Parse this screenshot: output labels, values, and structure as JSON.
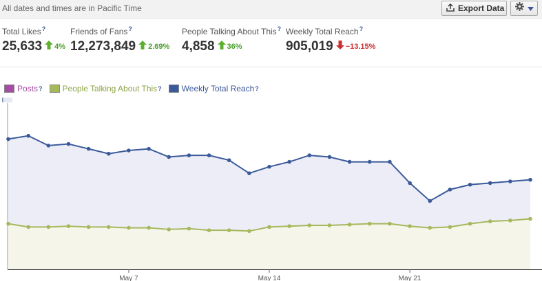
{
  "header": {
    "timezone_note": "All dates and times are in Pacific Time",
    "export_label": "Export Data",
    "gear_icon": "gear-icon"
  },
  "stats": [
    {
      "label": "Total Likes",
      "help": "?",
      "value": "25,633",
      "direction": "up",
      "change": "4%"
    },
    {
      "label": "Friends of Fans",
      "help": "?",
      "value": "12,273,849",
      "direction": "up",
      "change": "2.69%"
    },
    {
      "label": "People Talking About This",
      "help": "?",
      "value": "4,858",
      "direction": "up",
      "change": "36%"
    },
    {
      "label": "Weekly Total Reach",
      "help": "?",
      "value": "905,019",
      "direction": "down",
      "change": "−13.15%"
    }
  ],
  "colors": {
    "posts": "#a54ca5",
    "talking": "#a6b85c",
    "reach": "#3b5a9a",
    "reach_fill": "#ecedf7",
    "talking_fill": "#f5f5ea",
    "up": "#4a9d2a",
    "down": "#cc2f2f"
  },
  "legend": [
    {
      "label": "Posts",
      "help": "?",
      "color": "#a54ca5"
    },
    {
      "label": "People Talking About This",
      "help": "?",
      "color": "#a6b85c"
    },
    {
      "label": "Weekly Total Reach",
      "help": "?",
      "color": "#3b5a9a"
    }
  ],
  "chart_data": {
    "type": "area",
    "categories": [
      "",
      "",
      "",
      "",
      "",
      "",
      "May 7",
      "",
      "",
      "",
      "",
      "",
      "",
      "May 14",
      "",
      "",
      "",
      "",
      "",
      "",
      "May 21",
      "",
      "",
      "",
      "",
      "",
      ""
    ],
    "series": [
      {
        "name": "Weekly Total Reach",
        "values": [
          80,
          82,
          76,
          77,
          74,
          71,
          73,
          74,
          69,
          70,
          70,
          67,
          59,
          63,
          66,
          70,
          69,
          66,
          66,
          66,
          53,
          42,
          49,
          52,
          53,
          54,
          55
        ]
      },
      {
        "name": "People Talking About This",
        "values": [
          28,
          26,
          26,
          26.5,
          26,
          26,
          25.5,
          25.5,
          24.5,
          25,
          24,
          24,
          23.5,
          26,
          26.5,
          27,
          27,
          27.5,
          28,
          28,
          26.5,
          25.5,
          26,
          28,
          29.5,
          30,
          31
        ]
      }
    ],
    "ylim": [
      0,
      100
    ],
    "grid": false
  }
}
